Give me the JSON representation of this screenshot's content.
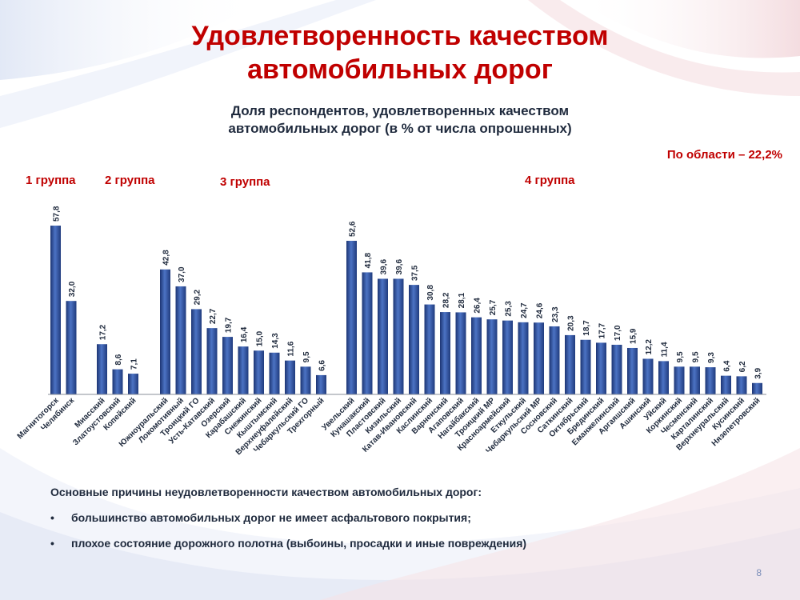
{
  "slide": {
    "title_line1": "Удовлетворенность качеством",
    "title_line2": "автомобильных дорог",
    "subtitle_line1": "Доля респондентов, удовлетворенных качеством",
    "subtitle_line2": "автомобильных дорог (в % от числа опрошенных)",
    "region_note": "По области – 22,2%",
    "groups": [
      "1 группа",
      "2 группа",
      "3 группа",
      "4 группа"
    ],
    "reasons_title": "Основные причины неудовлетворенности качеством автомобильных дорог:",
    "reasons": [
      "большинство автомобильных дорог не имеет асфальтового покрытия;",
      "плохое состояние дорожного полотна (выбоины, просадки и иные повреждения)"
    ],
    "bullet": "•",
    "page_number": "8"
  },
  "colors": {
    "accent": "#c00000",
    "bar": "#2d4f9a",
    "text": "#1f2a3d"
  },
  "chart_data": {
    "type": "bar",
    "title": "Доля респондентов, удовлетворенных качеством автомобильных дорог (в % от числа опрошенных)",
    "ylim": [
      0,
      60
    ],
    "grid": false,
    "groups": [
      {
        "name": "1 группа",
        "categories": [
          "Магнитогорск",
          "Челябинск"
        ],
        "labels": [
          "57,8",
          "32,0"
        ],
        "values": [
          57.8,
          32.0
        ]
      },
      {
        "name": "2 группа",
        "categories": [
          "Миасский",
          "Златоустовский",
          "Копейский"
        ],
        "labels": [
          "17,2",
          "8,6",
          "7,1"
        ],
        "values": [
          17.2,
          8.6,
          7.1
        ]
      },
      {
        "name": "3 группа",
        "categories": [
          "Южноуральский",
          "Локомотивный",
          "Троицкий ГО",
          "Усть-Катавский",
          "Озерский",
          "Карабашский",
          "Снежинский",
          "Кыштымский",
          "Верхнеуфалейский",
          "Чебаркульский ГО",
          "Трехгорный"
        ],
        "labels": [
          "42,8",
          "37,0",
          "29,2",
          "22,7",
          "19,7",
          "16,4",
          "15,0",
          "14,3",
          "11,6",
          "9,5",
          "6,6"
        ],
        "values": [
          42.8,
          37.0,
          29.2,
          22.7,
          19.7,
          16.4,
          15.0,
          14.3,
          11.6,
          9.5,
          6.6
        ]
      },
      {
        "name": "4 группа",
        "categories": [
          "Увельский",
          "Кунашакский",
          "Пластовский",
          "Кизильский",
          "Катав-Ивановский",
          "Каслинский",
          "Варненский",
          "Агаповский",
          "Нагайбакский",
          "Троицкий МР",
          "Красноармейский",
          "Еткульский",
          "Чебаркульский МР",
          "Сосновский",
          "Саткинский",
          "Октябрьский",
          "Брединский",
          "Еманжелинский",
          "Аргаяшский",
          "Ашинский",
          "Уйский",
          "Коркинский",
          "Чесменский",
          "Карталинский",
          "Верхнеуральский",
          "Кусинский",
          "Нязепетровский"
        ],
        "labels": [
          "52,6",
          "41,8",
          "39,6",
          "39,6",
          "37,5",
          "30,8",
          "28,2",
          "28,1",
          "26,4",
          "25,7",
          "25,3",
          "24,7",
          "24,6",
          "23,3",
          "20,3",
          "18,7",
          "17,7",
          "17,0",
          "15,9",
          "12,2",
          "11,4",
          "9,5",
          "9,5",
          "9,3",
          "6,4",
          "6,2",
          "3,9"
        ],
        "values": [
          52.6,
          41.8,
          39.6,
          39.6,
          37.5,
          30.8,
          28.2,
          28.1,
          26.4,
          25.7,
          25.3,
          24.7,
          24.6,
          23.3,
          20.3,
          18.7,
          17.7,
          17.0,
          15.9,
          12.2,
          11.4,
          9.5,
          9.5,
          9.3,
          6.4,
          6.2,
          3.9
        ]
      }
    ]
  }
}
